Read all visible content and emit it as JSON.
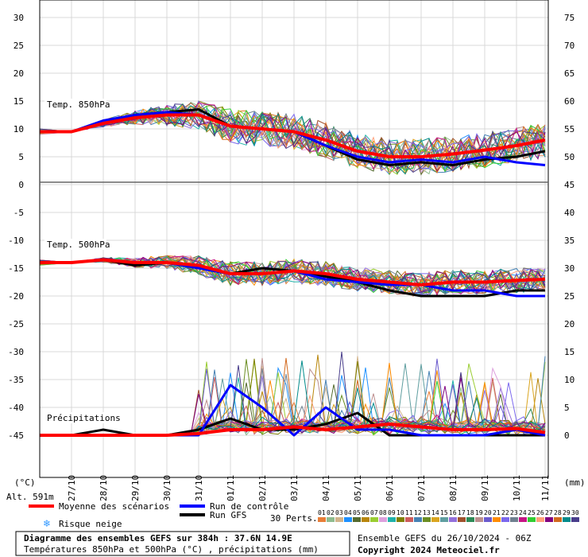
{
  "chart_data": {
    "type": "line",
    "title": "Diagramme des ensembles GEFS sur 384h : 37.6N 14.9E",
    "subtitle": "Températures 850hPa et 500hPa (°C) , précipitations (mm)",
    "run_info": "Ensemble GEFS du 26/10/2024 - 06Z",
    "copyright": "Copyright 2024 Meteociel.fr",
    "altitude": "Alt. 591m",
    "left_unit": "(°C)",
    "right_unit": "(mm)",
    "left_axis_ticks": [
      "30",
      "25",
      "20",
      "15",
      "10",
      "5",
      "0",
      "-5",
      "-10",
      "-15",
      "-20",
      "-25",
      "-30",
      "-35",
      "-40",
      "-45"
    ],
    "right_axis_ticks": [
      "75",
      "70",
      "65",
      "60",
      "55",
      "50",
      "45",
      "40",
      "35",
      "30",
      "25",
      "20",
      "15",
      "10",
      "5",
      "0"
    ],
    "left_range": [
      -45,
      30
    ],
    "x_labels": [
      "27/10",
      "28/10",
      "29/10",
      "30/10",
      "31/10",
      "01/11",
      "02/11",
      "03/11",
      "04/11",
      "05/11",
      "06/11",
      "07/11",
      "08/11",
      "09/11",
      "10/11",
      "11/11"
    ],
    "panel_labels": {
      "t850": "Temp. 850hPa",
      "t500": "Temp. 500hPa",
      "precip": "Précipitations"
    },
    "legend": {
      "mean": "Moyenne des scénarios",
      "control": "Run de contrôle",
      "gfs": "Run GFS",
      "snow": "Risque neige",
      "perts": "30 Perts.",
      "pert_numbers": [
        "01",
        "02",
        "03",
        "04",
        "05",
        "06",
        "07",
        "08",
        "09",
        "10",
        "11",
        "12",
        "13",
        "14",
        "15",
        "16",
        "17",
        "18",
        "19",
        "20",
        "21",
        "22",
        "23",
        "24",
        "25",
        "26",
        "27",
        "28",
        "29",
        "30"
      ]
    },
    "series_colors": {
      "mean": "#ff0000",
      "control": "#0000ff",
      "gfs": "#000000",
      "perts": [
        "#e87e38",
        "#8fbc8f",
        "#d2b48c",
        "#1e90ff",
        "#556b2f",
        "#b8860b",
        "#9acd32",
        "#dda0dd",
        "#20b2aa",
        "#808000",
        "#cd5c5c",
        "#4682b4",
        "#6b8e23",
        "#daa520",
        "#5f9ea0",
        "#9370db",
        "#a0522d",
        "#2e8b57",
        "#bc8f8f",
        "#6a5acd",
        "#ff8c00",
        "#7b68ee",
        "#708090",
        "#c71585",
        "#32cd32",
        "#ffa07a",
        "#800080",
        "#d2691e",
        "#008b8b",
        "#483d8b"
      ]
    },
    "series": [
      {
        "name": "Moyenne des scénarios - Temp. 850hPa",
        "x": [
          "27/10",
          "28/10",
          "29/10",
          "30/10",
          "31/10",
          "01/11",
          "02/11",
          "03/11",
          "04/11",
          "05/11",
          "06/11",
          "07/11",
          "08/11",
          "09/11",
          "10/11",
          "11/11"
        ],
        "values": [
          9.5,
          11,
          12,
          12.5,
          12.5,
          10.5,
          10,
          9.5,
          8,
          6,
          5,
          5,
          5.5,
          6.2,
          7,
          8
        ]
      },
      {
        "name": "Run de contrôle - Temp. 850hPa",
        "x": [
          "27/10",
          "28/10",
          "29/10",
          "30/10",
          "31/10",
          "01/11",
          "02/11",
          "03/11",
          "04/11",
          "05/11",
          "06/11",
          "07/11",
          "08/11",
          "09/11",
          "10/11",
          "11/11"
        ],
        "values": [
          9.5,
          11.5,
          12.5,
          13,
          12.5,
          10.5,
          10,
          9.5,
          7,
          5,
          4,
          4.5,
          4,
          5,
          4,
          3.5
        ]
      },
      {
        "name": "Run GFS - Temp. 850hPa",
        "x": [
          "27/10",
          "28/10",
          "29/10",
          "30/10",
          "31/10",
          "01/11",
          "02/11",
          "03/11",
          "04/11",
          "05/11",
          "06/11",
          "07/11",
          "08/11",
          "09/11",
          "10/11",
          "11/11"
        ],
        "values": [
          9.5,
          11,
          12.5,
          13,
          13.5,
          10.5,
          10,
          9.5,
          7,
          4.5,
          3.5,
          4,
          3.5,
          4.5,
          5,
          6
        ]
      },
      {
        "name": "Moyenne des scénarios - Temp. 500hPa",
        "x": [
          "27/10",
          "28/10",
          "29/10",
          "30/10",
          "31/10",
          "01/11",
          "02/11",
          "03/11",
          "04/11",
          "05/11",
          "06/11",
          "07/11",
          "08/11",
          "09/11",
          "10/11",
          "11/11"
        ],
        "values": [
          -14,
          -13.5,
          -14,
          -14,
          -14.5,
          -16,
          -16,
          -15.5,
          -16,
          -17,
          -17.5,
          -18,
          -17.5,
          -17.5,
          -17.2,
          -17
        ]
      },
      {
        "name": "Run de contrôle - Temp. 500hPa",
        "x": [
          "27/10",
          "28/10",
          "29/10",
          "30/10",
          "31/10",
          "01/11",
          "02/11",
          "03/11",
          "04/11",
          "05/11",
          "06/11",
          "07/11",
          "08/11",
          "09/11",
          "10/11",
          "11/11"
        ],
        "values": [
          -14,
          -13.5,
          -14,
          -14,
          -15,
          -16,
          -16,
          -15.5,
          -17,
          -17.5,
          -18,
          -18,
          -19,
          -19,
          -20,
          -20
        ]
      },
      {
        "name": "Run GFS - Temp. 500hPa",
        "x": [
          "27/10",
          "28/10",
          "29/10",
          "30/10",
          "31/10",
          "01/11",
          "02/11",
          "03/11",
          "04/11",
          "05/11",
          "06/11",
          "07/11",
          "08/11",
          "09/11",
          "10/11",
          "11/11"
        ],
        "values": [
          -14,
          -13.5,
          -14.5,
          -14,
          -15,
          -16,
          -15,
          -15.5,
          -16.5,
          -17.5,
          -19,
          -20,
          -20,
          -20,
          -19,
          -19
        ]
      },
      {
        "name": "Moyenne des scénarios - Précipitations (mm)",
        "x": [
          "27/10",
          "28/10",
          "29/10",
          "30/10",
          "31/10",
          "01/11",
          "02/11",
          "03/11",
          "04/11",
          "05/11",
          "06/11",
          "07/11",
          "08/11",
          "09/11",
          "10/11",
          "11/11"
        ],
        "values": [
          0,
          0,
          0,
          0,
          0.3,
          1,
          1,
          1.5,
          1,
          1.5,
          2,
          1.5,
          1,
          1,
          1.2,
          0.5
        ]
      },
      {
        "name": "Run de contrôle - Précipitations (mm)",
        "x": [
          "27/10",
          "28/10",
          "29/10",
          "30/10",
          "31/10",
          "01/11",
          "02/11",
          "03/11",
          "04/11",
          "05/11",
          "06/11",
          "07/11",
          "08/11",
          "09/11",
          "10/11",
          "11/11"
        ],
        "values": [
          0,
          0,
          0,
          0,
          0,
          9,
          5,
          0,
          5,
          1,
          1,
          0,
          0,
          0,
          1,
          0
        ]
      },
      {
        "name": "Run GFS - Précipitations (mm)",
        "x": [
          "27/10",
          "28/10",
          "29/10",
          "30/10",
          "31/10",
          "01/11",
          "02/11",
          "03/11",
          "04/11",
          "05/11",
          "06/11",
          "07/11",
          "08/11",
          "09/11",
          "10/11",
          "11/11"
        ],
        "values": [
          0,
          1,
          0,
          0,
          1,
          3,
          1,
          1,
          2,
          4,
          0,
          0,
          0,
          0,
          0,
          0
        ]
      }
    ]
  }
}
